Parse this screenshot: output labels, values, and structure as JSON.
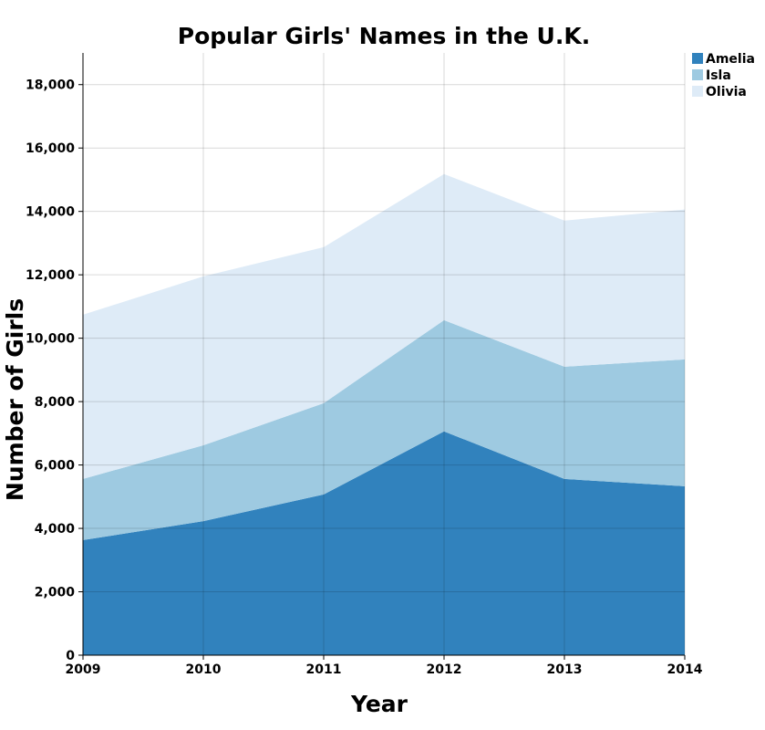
{
  "chart_data": {
    "type": "area",
    "stacked": true,
    "title": "Popular Girls' Names in the U.K.",
    "xlabel": "Year",
    "ylabel": "Number of Girls",
    "categories": [
      "2009",
      "2010",
      "2011",
      "2012",
      "2013",
      "2014"
    ],
    "series": [
      {
        "name": "Amelia",
        "color": "#3182bd",
        "values": [
          3630,
          4230,
          5070,
          7060,
          5560,
          5330
        ]
      },
      {
        "name": "Isla",
        "color": "#9ecae1",
        "values": [
          1930,
          2390,
          2880,
          3510,
          3540,
          4000
        ]
      },
      {
        "name": "Olivia",
        "color": "#deebf7",
        "values": [
          5180,
          5330,
          4920,
          4610,
          4610,
          4730
        ]
      }
    ],
    "ylim": [
      0,
      19000
    ],
    "yticks": [
      0,
      2000,
      4000,
      6000,
      8000,
      10000,
      12000,
      14000,
      16000,
      18000
    ],
    "ytick_labels": [
      "0",
      "2,000",
      "4,000",
      "6,000",
      "8,000",
      "10,000",
      "12,000",
      "14,000",
      "16,000",
      "18,000"
    ],
    "grid": true,
    "legend": "top-right"
  }
}
